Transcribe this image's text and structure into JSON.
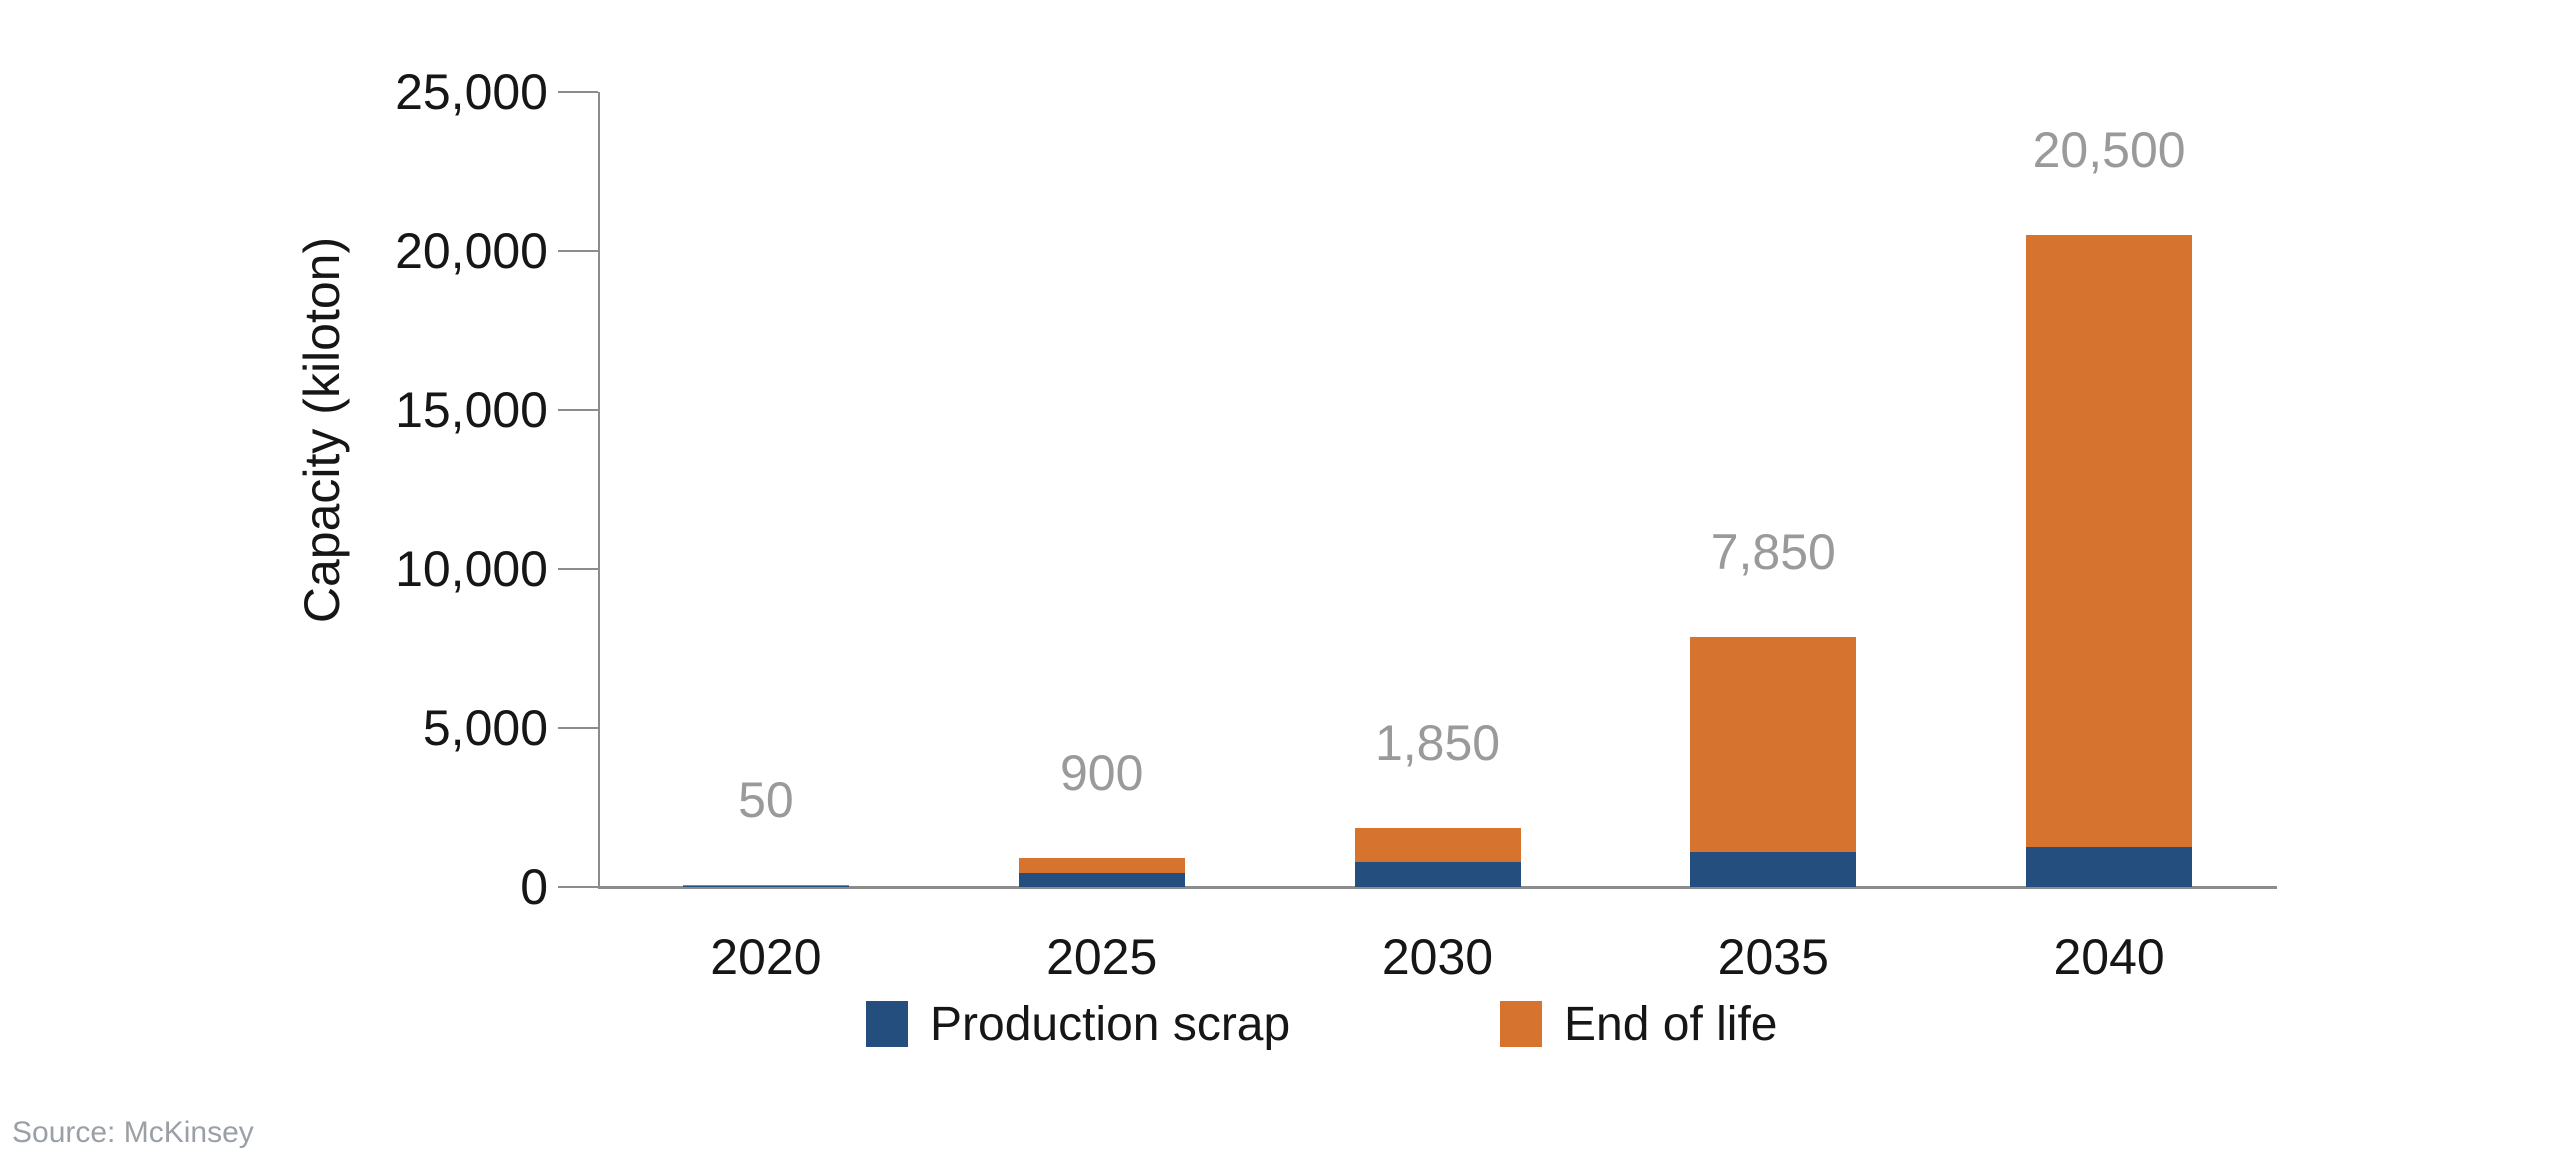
{
  "chart_data": {
    "type": "bar",
    "stacked": true,
    "title": "",
    "xlabel": "",
    "ylabel": "Capacity (kiloton)",
    "categories": [
      "2020",
      "2025",
      "2030",
      "2035",
      "2040"
    ],
    "series": [
      {
        "name": "Production scrap",
        "color": "#234E7E",
        "values": [
          25,
          450,
          800,
          1100,
          1250
        ]
      },
      {
        "name": "End of life",
        "color": "#D6732F",
        "values": [
          25,
          450,
          1050,
          6750,
          19250
        ]
      }
    ],
    "totals": [
      50,
      900,
      1850,
      7850,
      20500
    ],
    "total_labels": [
      "50",
      "900",
      "1,850",
      "7,850",
      "20,500"
    ],
    "ylim": [
      0,
      25000
    ],
    "yticks": [
      0,
      5000,
      10000,
      15000,
      20000,
      25000
    ],
    "ytick_labels": [
      "0",
      "5,000",
      "10,000",
      "15,000",
      "20,000",
      "25,000"
    ],
    "grid": false,
    "legend_position": "bottom",
    "data_label_color": "#9A9A9A",
    "axis_color": "#8C8C8C"
  },
  "source": {
    "label": "Source: McKinsey"
  }
}
